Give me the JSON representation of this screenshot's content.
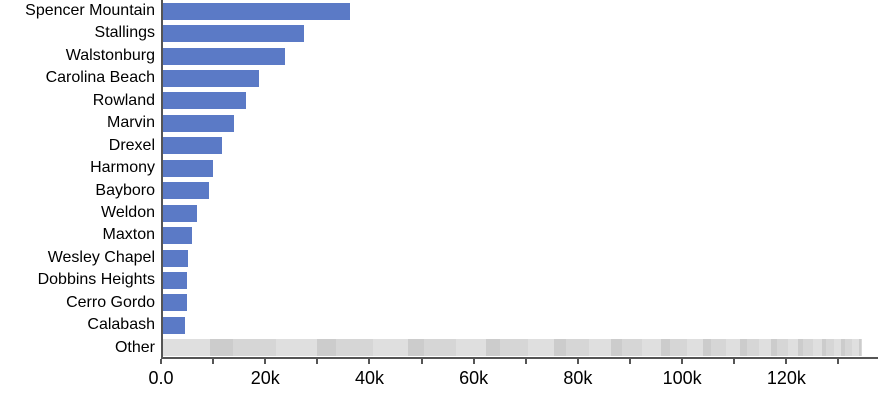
{
  "chart_data": {
    "type": "bar",
    "orientation": "horizontal",
    "title": "",
    "xlabel": "",
    "ylabel": "",
    "grid": false,
    "legend": "none",
    "categories": [
      "Spencer Mountain",
      "Stallings",
      "Walstonburg",
      "Carolina Beach",
      "Rowland",
      "Marvin",
      "Drexel",
      "Harmony",
      "Bayboro",
      "Weldon",
      "Maxton",
      "Wesley Chapel",
      "Dobbins Heights",
      "Cerro Gordo",
      "Calabash",
      "Other"
    ],
    "values": [
      35800,
      27000,
      23500,
      18400,
      16000,
      13600,
      11400,
      9500,
      8800,
      6600,
      5600,
      4800,
      4700,
      4600,
      4200,
      134100
    ],
    "other_category": "Other",
    "xlim": [
      0,
      137200
    ],
    "x_major_ticks": [
      {
        "value": 0,
        "label": "0.0"
      },
      {
        "value": 20000,
        "label": "20k"
      },
      {
        "value": 40000,
        "label": "40k"
      },
      {
        "value": 60000,
        "label": "60k"
      },
      {
        "value": 80000,
        "label": "80k"
      },
      {
        "value": 100000,
        "label": "100k"
      },
      {
        "value": 120000,
        "label": "120k"
      }
    ],
    "x_minor_tick_step": 10000,
    "x_minor_tick_max": 130000,
    "colors": {
      "bar_blue": "#5b7ac6",
      "other_grays": [
        "#dfdfdf",
        "#d6d6d6",
        "#cccccc"
      ],
      "axis": "#555555",
      "text": "#000000"
    }
  }
}
